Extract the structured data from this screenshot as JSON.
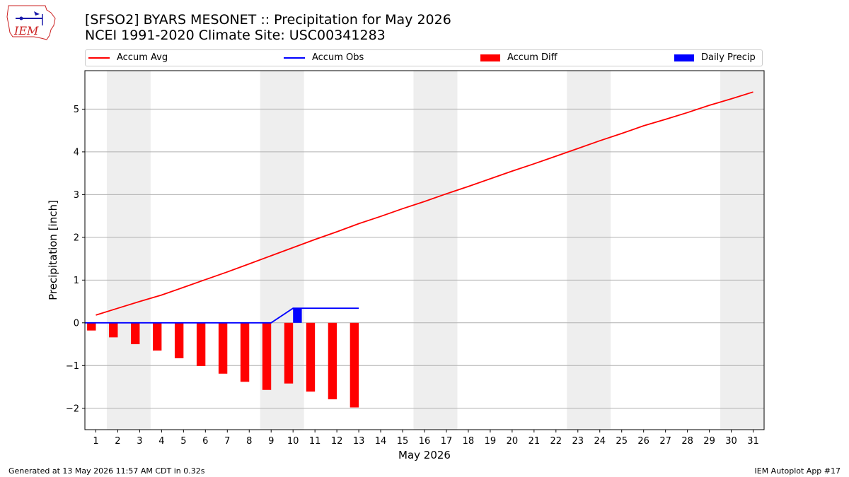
{
  "header": {
    "logo_text": "IEM",
    "title_line1": "[SFSO2] BYARS MESONET :: Precipitation for May 2026",
    "title_line2": "NCEI 1991-2020 Climate Site: USC00341283"
  },
  "legend": {
    "items": [
      {
        "label": "Accum Avg",
        "kind": "line",
        "color": "#ff0000"
      },
      {
        "label": "Accum Obs",
        "kind": "line",
        "color": "#0000ff"
      },
      {
        "label": "Accum Diff",
        "kind": "patch",
        "color": "#ff0000"
      },
      {
        "label": "Daily Precip",
        "kind": "patch",
        "color": "#0000ff"
      }
    ]
  },
  "chart_data": {
    "type": "bar",
    "xlabel": "May 2026",
    "ylabel": "Precipitation [inch]",
    "xlim": [
      0.5,
      31.5
    ],
    "ylim": [
      -2.5,
      5.9
    ],
    "yticks": [
      -2,
      -1,
      0,
      1,
      2,
      3,
      4,
      5
    ],
    "ytick_labels": [
      "−2",
      "−1",
      "0",
      "1",
      "2",
      "3",
      "4",
      "5"
    ],
    "days": [
      1,
      2,
      3,
      4,
      5,
      6,
      7,
      8,
      9,
      10,
      11,
      12,
      13,
      14,
      15,
      16,
      17,
      18,
      19,
      20,
      21,
      22,
      23,
      24,
      25,
      26,
      27,
      28,
      29,
      30,
      31
    ],
    "weekend_shading": [
      [
        1.5,
        3.5
      ],
      [
        8.5,
        10.5
      ],
      [
        15.5,
        17.5
      ],
      [
        22.5,
        24.5
      ],
      [
        29.5,
        31.5
      ]
    ],
    "grid": true,
    "series": [
      {
        "name": "Accum Avg",
        "kind": "line",
        "color": "#ff0000",
        "x": [
          1,
          2,
          3,
          4,
          5,
          6,
          7,
          8,
          9,
          10,
          11,
          12,
          13,
          14,
          15,
          16,
          17,
          18,
          19,
          20,
          21,
          22,
          23,
          24,
          25,
          26,
          27,
          28,
          29,
          30,
          31
        ],
        "values": [
          0.18,
          0.34,
          0.5,
          0.65,
          0.83,
          1.01,
          1.19,
          1.38,
          1.57,
          1.76,
          1.95,
          2.13,
          2.32,
          2.49,
          2.67,
          2.84,
          3.02,
          3.19,
          3.37,
          3.55,
          3.72,
          3.9,
          4.08,
          4.26,
          4.43,
          4.61,
          4.76,
          4.92,
          5.09,
          5.24,
          5.4
        ]
      },
      {
        "name": "Accum Obs",
        "kind": "line",
        "color": "#0000ff",
        "x": [
          0.5,
          1,
          2,
          3,
          4,
          5,
          6,
          7,
          8,
          9,
          10,
          11,
          12,
          13
        ],
        "values": [
          0,
          0,
          0,
          0,
          0,
          0,
          0,
          0,
          0,
          0,
          0.34,
          0.34,
          0.34,
          0.34
        ]
      },
      {
        "name": "Accum Diff",
        "kind": "bar",
        "color": "#ff0000",
        "offset": -0.2,
        "x": [
          1,
          2,
          3,
          4,
          5,
          6,
          7,
          8,
          9,
          10,
          11,
          12,
          13
        ],
        "values": [
          -0.18,
          -0.34,
          -0.5,
          -0.65,
          -0.83,
          -1.01,
          -1.19,
          -1.38,
          -1.57,
          -1.42,
          -1.61,
          -1.79,
          -1.98
        ]
      },
      {
        "name": "Daily Precip",
        "kind": "bar",
        "color": "#0000ff",
        "offset": 0.2,
        "x": [
          10
        ],
        "values": [
          0.34
        ]
      }
    ]
  },
  "footer": {
    "generated": "Generated at 13 May 2026 11:57 AM CDT in 0.32s",
    "app": "IEM Autoplot App #17"
  }
}
